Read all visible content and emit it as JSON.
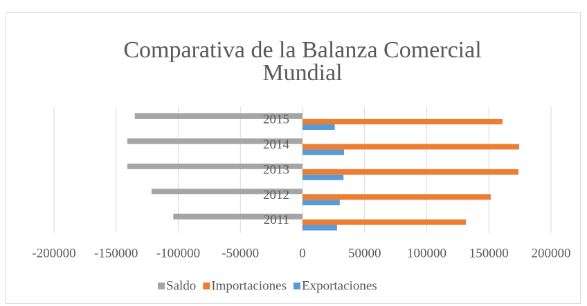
{
  "chart_data": {
    "type": "hbar",
    "title": "Comparativa de la Balanza Comercial Mundial",
    "categories": [
      "2011",
      "2012",
      "2013",
      "2014",
      "2015"
    ],
    "series": [
      {
        "name": "Saldo",
        "color": "#a5a5a5",
        "values": [
          -104000,
          -121500,
          -141000,
          -141000,
          -135000
        ]
      },
      {
        "name": "Importaciones",
        "color": "#ed7d31",
        "values": [
          131500,
          151500,
          173800,
          174400,
          161000
        ]
      },
      {
        "name": "Exportaciones",
        "color": "#5b9bd5",
        "values": [
          27800,
          30000,
          33000,
          33400,
          26000
        ]
      }
    ],
    "xlim": [
      -200000,
      200000
    ],
    "xticks": [
      -200000,
      -150000,
      -100000,
      -50000,
      0,
      50000,
      100000,
      150000,
      200000
    ],
    "grid": true,
    "legend": "bottom"
  }
}
